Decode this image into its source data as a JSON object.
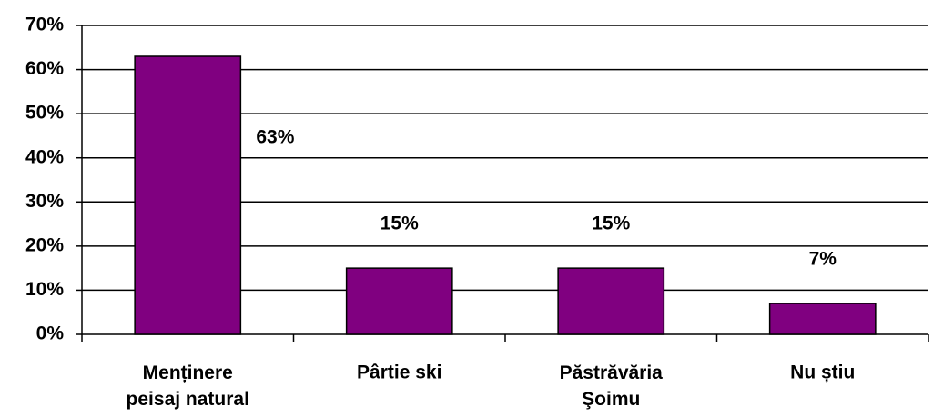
{
  "chart_data": {
    "type": "bar",
    "categories": [
      "Menținere\npeisaj natural",
      "Pârtie ski",
      "Păstrăvăria\nŞoimu",
      "Nu știu"
    ],
    "values": [
      63,
      15,
      15,
      7
    ],
    "value_labels": [
      "63%",
      "15%",
      "15%",
      "7%"
    ],
    "color": "#800080",
    "ylim": [
      0,
      70
    ],
    "yticks": [
      {
        "value": 0,
        "label": "0%"
      },
      {
        "value": 10,
        "label": "10%"
      },
      {
        "value": 20,
        "label": "20%"
      },
      {
        "value": 30,
        "label": "30%"
      },
      {
        "value": 40,
        "label": "40%"
      },
      {
        "value": 50,
        "label": "50%"
      },
      {
        "value": 60,
        "label": "60%"
      },
      {
        "value": 70,
        "label": "70%"
      }
    ],
    "grid": true
  }
}
